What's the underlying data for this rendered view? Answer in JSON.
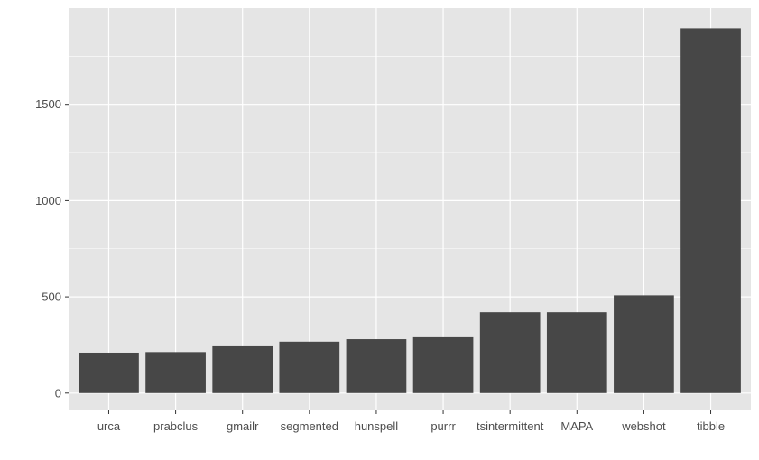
{
  "chart_data": {
    "type": "bar",
    "categories": [
      "urca",
      "prabclus",
      "gmailr",
      "segmented",
      "hunspell",
      "purrr",
      "tsintermittent",
      "MAPA",
      "webshot",
      "tibble"
    ],
    "values": [
      210,
      213,
      243,
      267,
      280,
      290,
      420,
      420,
      508,
      1895
    ],
    "ylim": [
      -90,
      2000
    ],
    "yticks": [
      0,
      500,
      1000,
      1500
    ],
    "ytick_labels": [
      "0",
      "500",
      "1000",
      "1500"
    ],
    "title": "",
    "xlabel": "",
    "ylabel": "",
    "grid": true,
    "colors": {
      "panel": "#e5e5e5",
      "grid_major": "#ffffff",
      "bar": "#474747",
      "tick_text": "#4d4d4d",
      "tick_mark": "#333333"
    }
  }
}
